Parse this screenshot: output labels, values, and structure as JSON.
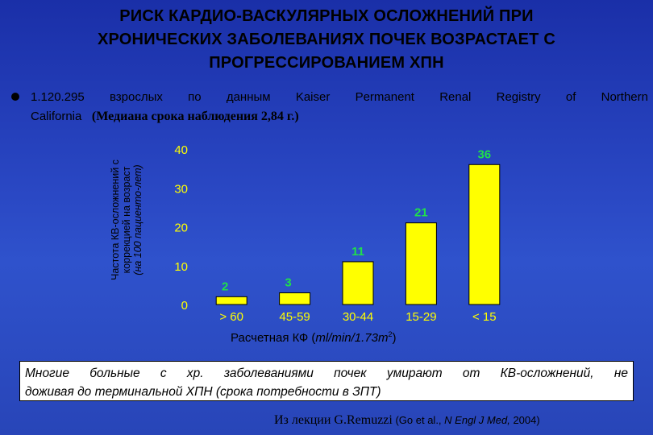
{
  "title": {
    "line1": "РИСК КАРДИО-ВАСКУЛЯРНЫХ ОСЛОЖНЕНИЙ ПРИ",
    "line2": "ХРОНИЧЕСКИХ ЗАБОЛЕВАНИЯХ ПОЧЕК ВОЗРАСТАЕТ С",
    "line3": "ПРОГРЕССИРОВАНИЕМ ХПН"
  },
  "bullet": {
    "words_line1": [
      "1.120.295",
      "взрослых",
      "по",
      "данным",
      "Kaiser",
      "Permanent",
      "Renal",
      "Registry",
      "of",
      "Northern"
    ],
    "line2_part1": "California",
    "line2_part2": "(Медиана срока наблюдения 2,84 г.)"
  },
  "chart_data": {
    "type": "bar",
    "categories": [
      "> 60",
      "45-59",
      "30-44",
      "15-29",
      "< 15"
    ],
    "values": [
      2,
      3,
      11,
      21,
      36
    ],
    "data_labels": [
      "2",
      "3",
      "11",
      "21",
      "36"
    ],
    "yticks": [
      "0",
      "10",
      "20",
      "30",
      "40"
    ],
    "ylim": [
      0,
      40
    ],
    "ylabel_line1": "Частота КВ-осложнений с",
    "ylabel_line2": "коррекцией на возраст",
    "ylabel_line3": "(на 100 пациенто-лет)",
    "xlabel_main": "Расчетная КФ (",
    "xlabel_italic": "ml/min/1.73m",
    "xlabel_sup": "2",
    "xlabel_end": ")",
    "grid": false,
    "bar_color": "#ffff00",
    "label_color": "#1fe04a",
    "axis_text_color": "#ffff00"
  },
  "note": {
    "line1": "Многие больные с хр. заболеваниями почек умирают от КВ-осложнений, не",
    "line2": "доживая до терминальной ХПН (срока потребности в ЗПТ)"
  },
  "source": {
    "lecture": "Из лекции G.Remuzzi",
    "ref_open": "(Go et al.,",
    "journal": "N Engl J Med,",
    "ref_close": "2004)"
  },
  "colors": {
    "background": "#2a45c0",
    "accent": "#ffff00",
    "data_label": "#1fe04a"
  }
}
